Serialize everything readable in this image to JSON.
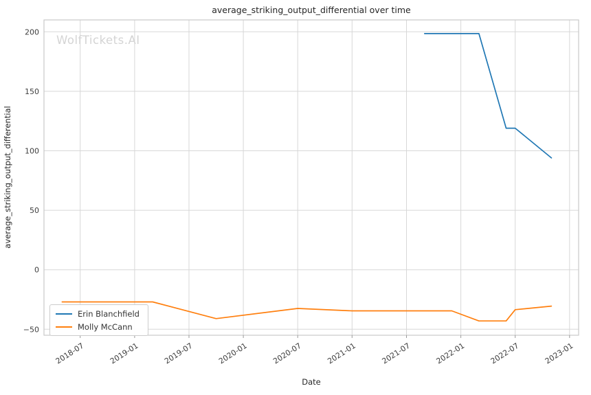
{
  "watermark": "WolfTickets.AI",
  "chart_data": {
    "type": "line",
    "title": "average_striking_output_differential over time",
    "xlabel": "Date",
    "ylabel": "average_striking_output_differential",
    "grid": true,
    "legend_position": "lower left",
    "background": "#ffffff",
    "grid_color": "#d7d7d7",
    "x_ticks": [
      "2018-07",
      "2019-01",
      "2019-07",
      "2020-01",
      "2020-07",
      "2021-01",
      "2021-07",
      "2022-01",
      "2022-07",
      "2023-01"
    ],
    "y_ticks": [
      200,
      150,
      100,
      50,
      0,
      -50
    ],
    "y_tick_labels": [
      "200",
      "150",
      "100",
      "50",
      "0",
      "−50"
    ],
    "xlim": [
      "2018-03",
      "2023-02"
    ],
    "ylim": [
      -55,
      210
    ],
    "series": [
      {
        "name": "Erin Blanchfield",
        "color": "#1f77b4",
        "x": [
          "2021-09",
          "2022-03",
          "2022-06",
          "2022-07",
          "2022-11"
        ],
        "values": [
          198.5,
          198.5,
          119,
          119,
          94
        ]
      },
      {
        "name": "Molly McCann",
        "color": "#ff7f0e",
        "x": [
          "2018-05",
          "2019-03",
          "2019-10",
          "2020-07",
          "2021-01",
          "2021-12",
          "2022-03",
          "2022-06",
          "2022-07",
          "2022-11"
        ],
        "values": [
          -27,
          -27,
          -41,
          -32.5,
          -34.5,
          -34.5,
          -43,
          -43,
          -33.5,
          -30.5
        ]
      }
    ]
  }
}
